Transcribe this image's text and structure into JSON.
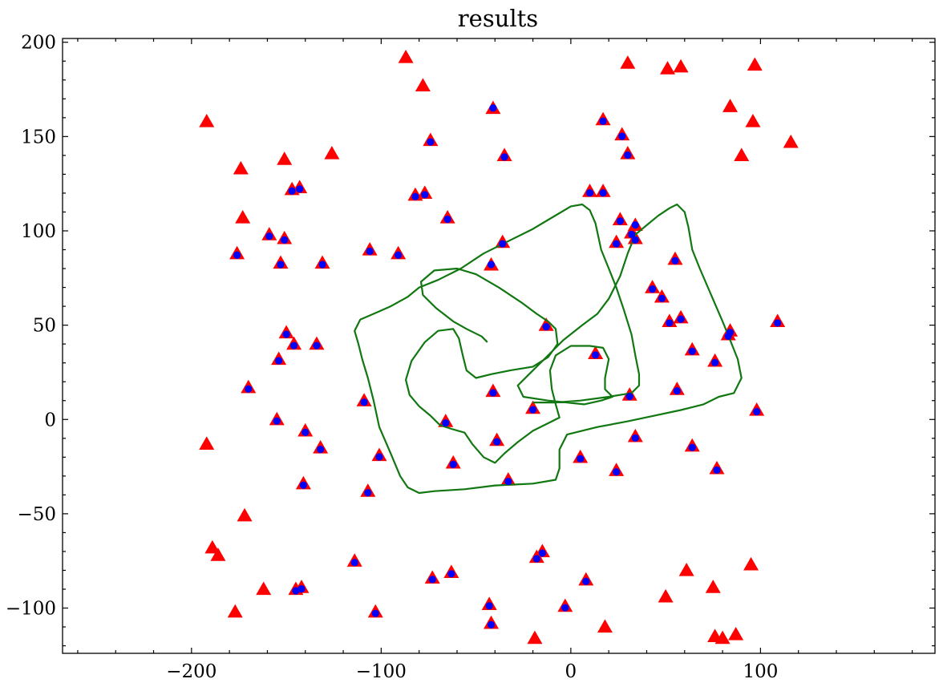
{
  "chart_data": {
    "type": "scatter",
    "title": "results",
    "xlabel": "",
    "ylabel": "",
    "xlim": [
      -268,
      192
    ],
    "ylim": [
      -124,
      202
    ],
    "x_ticks": [
      -200,
      -100,
      0,
      100
    ],
    "x_tick_labels": [
      "−200",
      "−100",
      "0",
      "100"
    ],
    "y_ticks": [
      -100,
      -50,
      0,
      50,
      100,
      150,
      200
    ],
    "y_tick_labels": [
      "−100",
      "−50",
      "0",
      "50",
      "100",
      "150",
      "200"
    ],
    "x_minor_step": 20,
    "y_minor_step": 10,
    "grid": false,
    "series": [
      {
        "marker": "triangle",
        "color": "#ff0000",
        "points": [
          [
            -87,
            192
          ],
          [
            30,
            189
          ],
          [
            51,
            186
          ],
          [
            58,
            187
          ],
          [
            97,
            188
          ],
          [
            -78,
            177
          ],
          [
            -41,
            165
          ],
          [
            84,
            166
          ],
          [
            17,
            159
          ],
          [
            -192,
            158
          ],
          [
            96,
            158
          ],
          [
            -74,
            148
          ],
          [
            27,
            151
          ],
          [
            116,
            147
          ],
          [
            -35,
            140
          ],
          [
            30,
            141
          ],
          [
            90,
            140
          ],
          [
            -151,
            138
          ],
          [
            -126,
            141
          ],
          [
            -174,
            133
          ],
          [
            -147,
            122
          ],
          [
            -143,
            123
          ],
          [
            -82,
            119
          ],
          [
            -77,
            120
          ],
          [
            10,
            121
          ],
          [
            17,
            121
          ],
          [
            -173,
            107
          ],
          [
            -65,
            107
          ],
          [
            26,
            106
          ],
          [
            34,
            103
          ],
          [
            -159,
            98
          ],
          [
            -151,
            96
          ],
          [
            -36,
            94
          ],
          [
            32,
            99
          ],
          [
            34,
            96
          ],
          [
            24,
            94
          ],
          [
            -176,
            88
          ],
          [
            -106,
            90
          ],
          [
            -91,
            88
          ],
          [
            -153,
            83
          ],
          [
            -131,
            83
          ],
          [
            -42,
            82
          ],
          [
            55,
            85
          ],
          [
            43,
            70
          ],
          [
            48,
            65
          ],
          [
            58,
            54
          ],
          [
            -150,
            46
          ],
          [
            52,
            52
          ],
          [
            -13,
            50
          ],
          [
            83,
            45
          ],
          [
            84,
            47
          ],
          [
            109,
            52
          ],
          [
            -146,
            40
          ],
          [
            -134,
            40
          ],
          [
            -154,
            32
          ],
          [
            64,
            37
          ],
          [
            13,
            35
          ],
          [
            76,
            31
          ],
          [
            -170,
            17
          ],
          [
            -41,
            15
          ],
          [
            31,
            13
          ],
          [
            56,
            16
          ],
          [
            -109,
            10
          ],
          [
            -20,
            6
          ],
          [
            98,
            5
          ],
          [
            -155,
            0
          ],
          [
            -66,
            -1
          ],
          [
            -192,
            -13
          ],
          [
            -140,
            -6
          ],
          [
            -39,
            -11
          ],
          [
            34,
            -9
          ],
          [
            -132,
            -15
          ],
          [
            64,
            -14
          ],
          [
            -101,
            -19
          ],
          [
            5,
            -20
          ],
          [
            -62,
            -23
          ],
          [
            77,
            -26
          ],
          [
            24,
            -27
          ],
          [
            -141,
            -34
          ],
          [
            -33,
            -32
          ],
          [
            -107,
            -38
          ],
          [
            -172,
            -51
          ],
          [
            -189,
            -68
          ],
          [
            -186,
            -72
          ],
          [
            -15,
            -70
          ],
          [
            -18,
            -73
          ],
          [
            -114,
            -75
          ],
          [
            61,
            -80
          ],
          [
            95,
            -77
          ],
          [
            -63,
            -81
          ],
          [
            -73,
            -84
          ],
          [
            8,
            -85
          ],
          [
            -162,
            -90
          ],
          [
            -145,
            -90
          ],
          [
            -142,
            -89
          ],
          [
            50,
            -94
          ],
          [
            75,
            -89
          ],
          [
            -43,
            -98
          ],
          [
            -3,
            -99
          ],
          [
            -177,
            -102
          ],
          [
            -103,
            -102
          ],
          [
            -42,
            -108
          ],
          [
            18,
            -110
          ],
          [
            76,
            -115
          ],
          [
            80,
            -116
          ],
          [
            87,
            -114
          ],
          [
            -19,
            -116
          ]
        ]
      },
      {
        "marker": "circle",
        "color": "#0000ff",
        "points": [
          [
            -41,
            166
          ],
          [
            17,
            159
          ],
          [
            -74,
            148
          ],
          [
            27,
            151
          ],
          [
            -35,
            140
          ],
          [
            30,
            141
          ],
          [
            -147,
            122
          ],
          [
            -143,
            123
          ],
          [
            -82,
            119
          ],
          [
            -77,
            120
          ],
          [
            10,
            121
          ],
          [
            17,
            121
          ],
          [
            -65,
            107
          ],
          [
            26,
            106
          ],
          [
            34,
            104
          ],
          [
            -159,
            98
          ],
          [
            -151,
            96
          ],
          [
            -36,
            94
          ],
          [
            32,
            99
          ],
          [
            34,
            96
          ],
          [
            24,
            94
          ],
          [
            -176,
            88
          ],
          [
            -106,
            90
          ],
          [
            -91,
            88
          ],
          [
            -153,
            83
          ],
          [
            -131,
            83
          ],
          [
            -42,
            83
          ],
          [
            55,
            85
          ],
          [
            43,
            70
          ],
          [
            48,
            65
          ],
          [
            58,
            54
          ],
          [
            -150,
            46
          ],
          [
            52,
            52
          ],
          [
            -13,
            50
          ],
          [
            83,
            45
          ],
          [
            84,
            47
          ],
          [
            109,
            52
          ],
          [
            -146,
            40
          ],
          [
            -134,
            40
          ],
          [
            -154,
            32
          ],
          [
            64,
            37
          ],
          [
            13,
            35
          ],
          [
            76,
            31
          ],
          [
            -170,
            17
          ],
          [
            -41,
            15
          ],
          [
            31,
            13
          ],
          [
            56,
            16
          ],
          [
            -109,
            10
          ],
          [
            -20,
            6
          ],
          [
            98,
            5
          ],
          [
            -155,
            0
          ],
          [
            -66,
            -1
          ],
          [
            -140,
            -6
          ],
          [
            -39,
            -11
          ],
          [
            34,
            -9
          ],
          [
            -132,
            -15
          ],
          [
            64,
            -14
          ],
          [
            -101,
            -19
          ],
          [
            5,
            -20
          ],
          [
            -62,
            -23
          ],
          [
            77,
            -26
          ],
          [
            24,
            -27
          ],
          [
            -141,
            -34
          ],
          [
            -33,
            -32
          ],
          [
            -107,
            -38
          ],
          [
            -15,
            -70
          ],
          [
            -18,
            -73
          ],
          [
            -114,
            -75
          ],
          [
            -63,
            -81
          ],
          [
            -73,
            -84
          ],
          [
            8,
            -85
          ],
          [
            -145,
            -90
          ],
          [
            -142,
            -89
          ],
          [
            -43,
            -98
          ],
          [
            -3,
            -99
          ],
          [
            -103,
            -102
          ],
          [
            -42,
            -108
          ]
        ]
      },
      {
        "marker": "line",
        "color": "#117711",
        "points": [
          [
            -44,
            41
          ],
          [
            -47,
            44
          ],
          [
            -55,
            48
          ],
          [
            -62,
            52
          ],
          [
            -71,
            59
          ],
          [
            -78,
            66
          ],
          [
            -79,
            73
          ],
          [
            -72,
            79
          ],
          [
            -60,
            80
          ],
          [
            -50,
            77
          ],
          [
            -38,
            70
          ],
          [
            -26,
            62
          ],
          [
            -18,
            56
          ],
          [
            -12,
            52
          ],
          [
            -8,
            48
          ],
          [
            -7,
            40
          ],
          [
            -12,
            33
          ],
          [
            -20,
            28
          ],
          [
            -32,
            26
          ],
          [
            -42,
            24
          ],
          [
            -50,
            22
          ],
          [
            -55,
            26
          ],
          [
            -57,
            34
          ],
          [
            -59,
            43
          ],
          [
            -62,
            48
          ],
          [
            -70,
            47
          ],
          [
            -77,
            41
          ],
          [
            -84,
            31
          ],
          [
            -87,
            21
          ],
          [
            -85,
            13
          ],
          [
            -80,
            7
          ],
          [
            -74,
            2
          ],
          [
            -69,
            -3
          ],
          [
            -63,
            -5
          ],
          [
            -56,
            -7
          ],
          [
            -52,
            -13
          ],
          [
            -46,
            -20
          ],
          [
            -40,
            -23
          ],
          [
            -35,
            -18
          ],
          [
            -28,
            -12
          ],
          [
            -20,
            -6
          ],
          [
            -12,
            -2
          ],
          [
            -6,
            1
          ],
          [
            -8,
            8
          ],
          [
            -10,
            16
          ],
          [
            -11,
            26
          ],
          [
            -8,
            34
          ],
          [
            0,
            39
          ],
          [
            10,
            39
          ],
          [
            17,
            38
          ],
          [
            20,
            32
          ],
          [
            18,
            22
          ],
          [
            18,
            16
          ],
          [
            22,
            12
          ],
          [
            16,
            10
          ],
          [
            7,
            8
          ],
          [
            -2,
            9
          ],
          [
            -12,
            10
          ],
          [
            -25,
            12
          ],
          [
            -28,
            18
          ],
          [
            -22,
            24
          ],
          [
            -18,
            28
          ],
          [
            -14,
            32
          ],
          [
            -10,
            36
          ],
          [
            -4,
            42
          ],
          [
            6,
            50
          ],
          [
            14,
            56
          ],
          [
            20,
            64
          ],
          [
            26,
            76
          ],
          [
            30,
            88
          ],
          [
            34,
            98
          ],
          [
            40,
            103
          ],
          [
            46,
            108
          ],
          [
            52,
            112
          ],
          [
            56,
            114
          ],
          [
            60,
            110
          ],
          [
            62,
            102
          ],
          [
            64,
            90
          ],
          [
            68,
            80
          ],
          [
            74,
            66
          ],
          [
            80,
            52
          ],
          [
            84,
            42
          ],
          [
            88,
            32
          ],
          [
            90,
            22
          ],
          [
            86,
            14
          ],
          [
            78,
            12
          ],
          [
            70,
            8
          ],
          [
            58,
            5
          ],
          [
            44,
            2
          ],
          [
            30,
            -1
          ],
          [
            14,
            -4
          ],
          [
            -2,
            -8
          ],
          [
            -6,
            -16
          ],
          [
            -6,
            -26
          ],
          [
            -8,
            -32
          ],
          [
            -20,
            -34
          ],
          [
            -40,
            -35
          ],
          [
            -56,
            -37
          ],
          [
            -72,
            -38
          ],
          [
            -80,
            -39
          ],
          [
            -86,
            -36
          ],
          [
            -90,
            -30
          ],
          [
            -95,
            -18
          ],
          [
            -101,
            -4
          ],
          [
            -104,
            10
          ],
          [
            -107,
            22
          ],
          [
            -110,
            32
          ],
          [
            -112,
            40
          ],
          [
            -114,
            47
          ],
          [
            -111,
            53
          ],
          [
            -104,
            56
          ],
          [
            -95,
            60
          ],
          [
            -86,
            65
          ],
          [
            -80,
            70
          ],
          [
            -70,
            74
          ],
          [
            -58,
            80
          ],
          [
            -46,
            88
          ],
          [
            -32,
            95
          ],
          [
            -20,
            101
          ],
          [
            -10,
            107
          ],
          [
            0,
            113
          ],
          [
            6,
            114
          ],
          [
            10,
            111
          ],
          [
            13,
            104
          ],
          [
            16,
            90
          ],
          [
            20,
            80
          ],
          [
            24,
            70
          ],
          [
            28,
            58
          ],
          [
            32,
            45
          ],
          [
            34,
            34
          ],
          [
            36,
            24
          ],
          [
            36,
            18
          ],
          [
            32,
            14
          ],
          [
            20,
            12
          ],
          [
            5,
            10
          ],
          [
            -8,
            9
          ],
          [
            -20,
            9
          ]
        ]
      }
    ]
  }
}
